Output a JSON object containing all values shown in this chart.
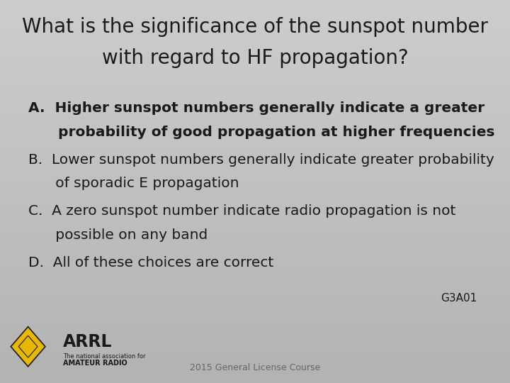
{
  "title_line1": "What is the significance of the sunspot number",
  "title_line2": "with regard to HF propagation?",
  "answer_a_line1": "A.  Higher sunspot numbers generally indicate a greater",
  "answer_a_line2": "      probability of good propagation at higher frequencies",
  "answer_b_line1": "B.  Lower sunspot numbers generally indicate greater probability",
  "answer_b_line2": "      of sporadic E propagation",
  "answer_c_line1": "C.  A zero sunspot number indicate radio propagation is not",
  "answer_c_line2": "      possible on any band",
  "answer_d_line1": "D.  All of these choices are correct",
  "code": "G3A01",
  "footer": "2015 General License Course",
  "text_color": "#1a1a1a",
  "title_fontsize": 20,
  "answer_fontsize": 14.5
}
